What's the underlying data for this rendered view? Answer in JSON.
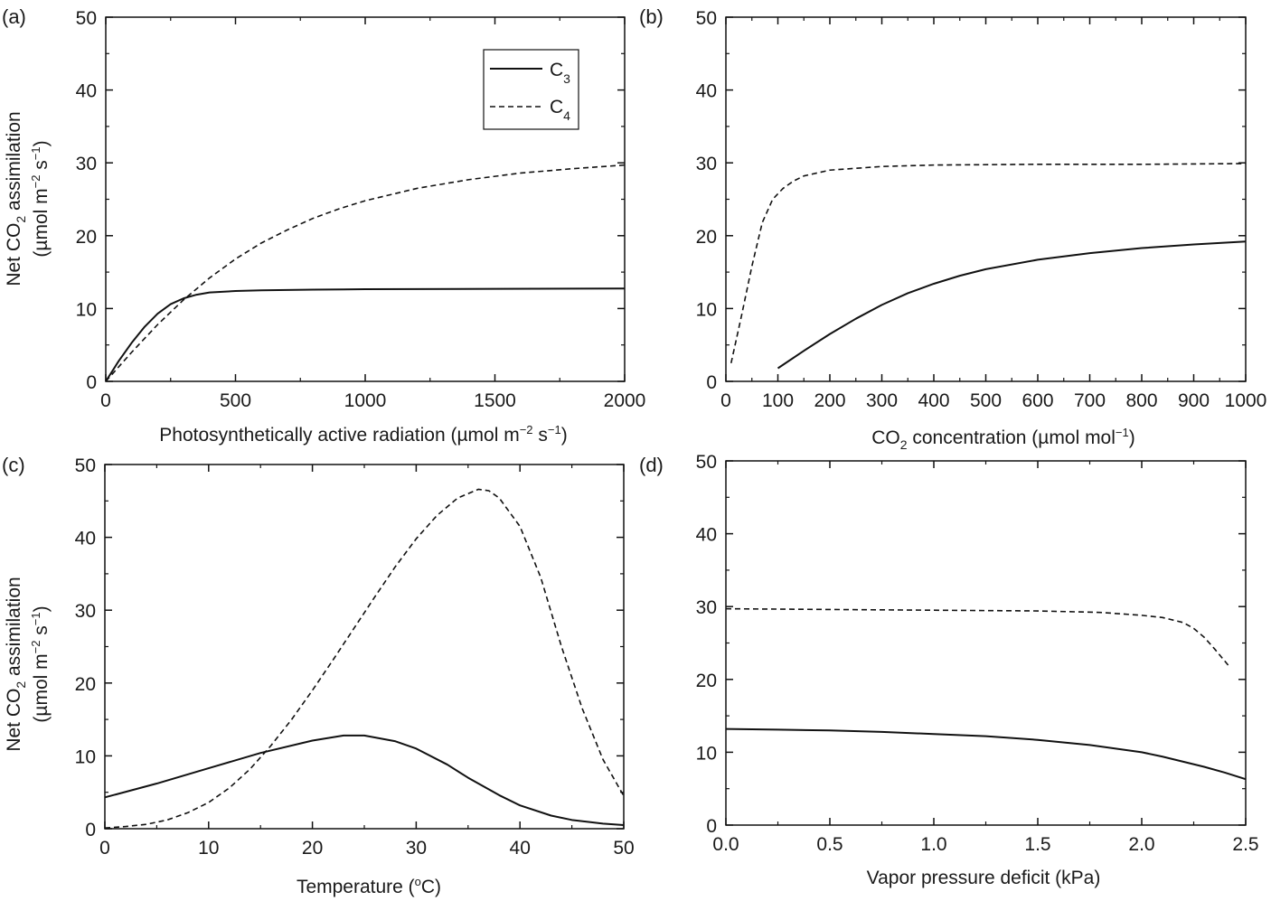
{
  "figure": {
    "panel_letters": [
      "(a)",
      "(b)",
      "(c)",
      "(d)"
    ],
    "ylabel_line1_pre": "Net CO",
    "ylabel_line1_sub": "2",
    "ylabel_line1_post": " assimilation",
    "ylabel_line2_pre": "(µmol m",
    "ylabel_line2_sup1": "−2",
    "ylabel_line2_mid": " s",
    "ylabel_line2_sup2": "−1",
    "ylabel_line2_post": ")",
    "legend": {
      "c3_pre": "C",
      "c3_sub": "3",
      "c4_pre": "C",
      "c4_sub": "4"
    },
    "xlabels": {
      "a": {
        "pre": "Photosynthetically active radiation (µmol m",
        "sup1": "−2",
        "mid": " s",
        "sup2": "−1",
        "post": ")"
      },
      "b": {
        "pre": "CO",
        "sub": "2",
        "mid": " concentration (µmol mol",
        "sup": "−1",
        "post": ")"
      },
      "c": {
        "pre": "Temperature (",
        "sup": "o",
        "post": "C)"
      },
      "d": {
        "text": "Vapor pressure deficit (kPa)"
      }
    }
  },
  "chart_data": [
    {
      "type": "line",
      "panel": "(a)",
      "xlim": [
        0,
        2000
      ],
      "ylim": [
        0,
        50
      ],
      "xticks": [
        "0",
        "500",
        "1000",
        "1500",
        "2000"
      ],
      "yticks": [
        "0",
        "10",
        "20",
        "30",
        "40",
        "50"
      ],
      "grid": false,
      "legend_position": "top-right",
      "series": [
        {
          "name": "C3",
          "style": "solid",
          "x": [
            0,
            50,
            100,
            150,
            200,
            250,
            300,
            350,
            400,
            500,
            600,
            800,
            1000,
            1500,
            2000
          ],
          "y": [
            0,
            2.8,
            5.3,
            7.5,
            9.3,
            10.6,
            11.4,
            11.9,
            12.2,
            12.4,
            12.5,
            12.6,
            12.65,
            12.7,
            12.75
          ]
        },
        {
          "name": "C4",
          "style": "dashed",
          "x": [
            0,
            100,
            200,
            300,
            400,
            500,
            600,
            700,
            800,
            900,
            1000,
            1200,
            1400,
            1600,
            1800,
            2000
          ],
          "y": [
            0,
            4.0,
            7.8,
            11.2,
            14.2,
            16.8,
            19.0,
            20.8,
            22.4,
            23.7,
            24.8,
            26.5,
            27.7,
            28.6,
            29.2,
            29.7
          ]
        }
      ]
    },
    {
      "type": "line",
      "panel": "(b)",
      "xlim": [
        0,
        1000
      ],
      "ylim": [
        0,
        50
      ],
      "xticks": [
        "0",
        "100",
        "200",
        "300",
        "400",
        "500",
        "600",
        "700",
        "800",
        "900",
        "1000"
      ],
      "yticks": [
        "0",
        "10",
        "20",
        "30",
        "40",
        "50"
      ],
      "grid": false,
      "series": [
        {
          "name": "C3",
          "style": "solid",
          "x": [
            100,
            150,
            200,
            250,
            300,
            350,
            400,
            450,
            500,
            600,
            700,
            800,
            900,
            1000
          ],
          "y": [
            1.8,
            4.2,
            6.5,
            8.6,
            10.5,
            12.1,
            13.4,
            14.5,
            15.4,
            16.7,
            17.6,
            18.3,
            18.8,
            19.2
          ]
        },
        {
          "name": "C4",
          "style": "dashed",
          "x": [
            10,
            30,
            50,
            70,
            90,
            110,
            130,
            150,
            200,
            300,
            400,
            600,
            800,
            1000
          ],
          "y": [
            2.5,
            9.0,
            15.8,
            21.8,
            25.0,
            26.5,
            27.5,
            28.2,
            29.0,
            29.5,
            29.7,
            29.8,
            29.8,
            29.9
          ]
        }
      ]
    },
    {
      "type": "line",
      "panel": "(c)",
      "xlim": [
        0,
        50
      ],
      "ylim": [
        0,
        50
      ],
      "xticks": [
        "0",
        "10",
        "20",
        "30",
        "40",
        "50"
      ],
      "yticks": [
        "0",
        "10",
        "20",
        "30",
        "40",
        "50"
      ],
      "grid": false,
      "series": [
        {
          "name": "C3",
          "style": "solid",
          "x": [
            0,
            5,
            10,
            15,
            20,
            23,
            25,
            28,
            30,
            33,
            35,
            38,
            40,
            43,
            45,
            48,
            50
          ],
          "y": [
            4.3,
            6.2,
            8.3,
            10.4,
            12.1,
            12.8,
            12.8,
            12.0,
            11.0,
            8.8,
            7.0,
            4.6,
            3.2,
            1.8,
            1.2,
            0.7,
            0.5
          ]
        },
        {
          "name": "C4",
          "style": "dashed",
          "x": [
            0,
            2,
            4,
            6,
            8,
            10,
            12,
            14,
            16,
            18,
            20,
            22,
            24,
            26,
            28,
            30,
            32,
            34,
            36,
            37,
            38,
            40,
            42,
            44,
            46,
            48,
            50
          ],
          "y": [
            0.1,
            0.3,
            0.6,
            1.2,
            2.2,
            3.6,
            5.6,
            8.2,
            11.4,
            15.0,
            19.0,
            23.2,
            27.5,
            31.8,
            36.0,
            39.8,
            43.0,
            45.4,
            46.6,
            46.4,
            45.4,
            41.5,
            34.5,
            25.0,
            16.5,
            9.5,
            4.5
          ]
        }
      ]
    },
    {
      "type": "line",
      "panel": "(d)",
      "xlim": [
        0,
        2.5
      ],
      "ylim": [
        0,
        50
      ],
      "xticks": [
        "0.0",
        "0.5",
        "1.0",
        "1.5",
        "2.0",
        "2.5"
      ],
      "yticks": [
        "0",
        "10",
        "20",
        "30",
        "40",
        "50"
      ],
      "grid": false,
      "series": [
        {
          "name": "C3",
          "style": "solid",
          "x": [
            0,
            0.25,
            0.5,
            0.75,
            1.0,
            1.25,
            1.5,
            1.75,
            2.0,
            2.1,
            2.2,
            2.3,
            2.4,
            2.5
          ],
          "y": [
            13.2,
            13.1,
            13.0,
            12.8,
            12.5,
            12.2,
            11.7,
            11.0,
            10.0,
            9.4,
            8.7,
            8.0,
            7.2,
            6.3
          ]
        },
        {
          "name": "C4",
          "style": "dashed",
          "x": [
            0,
            0.5,
            1.0,
            1.5,
            1.8,
            2.0,
            2.1,
            2.2,
            2.25,
            2.3,
            2.35,
            2.4,
            2.42
          ],
          "y": [
            29.7,
            29.6,
            29.5,
            29.4,
            29.2,
            28.8,
            28.5,
            27.8,
            27.0,
            25.8,
            24.2,
            22.5,
            21.8
          ]
        }
      ]
    }
  ]
}
